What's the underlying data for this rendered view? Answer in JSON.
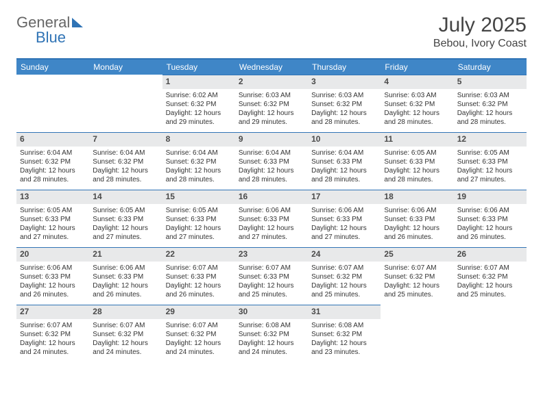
{
  "logo": {
    "word1": "General",
    "word2": "Blue"
  },
  "header": {
    "month_title": "July 2025",
    "location": "Bebou, Ivory Coast"
  },
  "colors": {
    "accent": "#2f73b5",
    "header_bg": "#3f86c7",
    "daynum_bg": "#e8e9ea",
    "text": "#333333"
  },
  "weekdays": [
    "Sunday",
    "Monday",
    "Tuesday",
    "Wednesday",
    "Thursday",
    "Friday",
    "Saturday"
  ],
  "weeks": [
    [
      null,
      null,
      {
        "n": "1",
        "rise": "6:02 AM",
        "set": "6:32 PM",
        "dl": "12 hours and 29 minutes."
      },
      {
        "n": "2",
        "rise": "6:03 AM",
        "set": "6:32 PM",
        "dl": "12 hours and 29 minutes."
      },
      {
        "n": "3",
        "rise": "6:03 AM",
        "set": "6:32 PM",
        "dl": "12 hours and 28 minutes."
      },
      {
        "n": "4",
        "rise": "6:03 AM",
        "set": "6:32 PM",
        "dl": "12 hours and 28 minutes."
      },
      {
        "n": "5",
        "rise": "6:03 AM",
        "set": "6:32 PM",
        "dl": "12 hours and 28 minutes."
      }
    ],
    [
      {
        "n": "6",
        "rise": "6:04 AM",
        "set": "6:32 PM",
        "dl": "12 hours and 28 minutes."
      },
      {
        "n": "7",
        "rise": "6:04 AM",
        "set": "6:32 PM",
        "dl": "12 hours and 28 minutes."
      },
      {
        "n": "8",
        "rise": "6:04 AM",
        "set": "6:32 PM",
        "dl": "12 hours and 28 minutes."
      },
      {
        "n": "9",
        "rise": "6:04 AM",
        "set": "6:33 PM",
        "dl": "12 hours and 28 minutes."
      },
      {
        "n": "10",
        "rise": "6:04 AM",
        "set": "6:33 PM",
        "dl": "12 hours and 28 minutes."
      },
      {
        "n": "11",
        "rise": "6:05 AM",
        "set": "6:33 PM",
        "dl": "12 hours and 28 minutes."
      },
      {
        "n": "12",
        "rise": "6:05 AM",
        "set": "6:33 PM",
        "dl": "12 hours and 27 minutes."
      }
    ],
    [
      {
        "n": "13",
        "rise": "6:05 AM",
        "set": "6:33 PM",
        "dl": "12 hours and 27 minutes."
      },
      {
        "n": "14",
        "rise": "6:05 AM",
        "set": "6:33 PM",
        "dl": "12 hours and 27 minutes."
      },
      {
        "n": "15",
        "rise": "6:05 AM",
        "set": "6:33 PM",
        "dl": "12 hours and 27 minutes."
      },
      {
        "n": "16",
        "rise": "6:06 AM",
        "set": "6:33 PM",
        "dl": "12 hours and 27 minutes."
      },
      {
        "n": "17",
        "rise": "6:06 AM",
        "set": "6:33 PM",
        "dl": "12 hours and 27 minutes."
      },
      {
        "n": "18",
        "rise": "6:06 AM",
        "set": "6:33 PM",
        "dl": "12 hours and 26 minutes."
      },
      {
        "n": "19",
        "rise": "6:06 AM",
        "set": "6:33 PM",
        "dl": "12 hours and 26 minutes."
      }
    ],
    [
      {
        "n": "20",
        "rise": "6:06 AM",
        "set": "6:33 PM",
        "dl": "12 hours and 26 minutes."
      },
      {
        "n": "21",
        "rise": "6:06 AM",
        "set": "6:33 PM",
        "dl": "12 hours and 26 minutes."
      },
      {
        "n": "22",
        "rise": "6:07 AM",
        "set": "6:33 PM",
        "dl": "12 hours and 26 minutes."
      },
      {
        "n": "23",
        "rise": "6:07 AM",
        "set": "6:33 PM",
        "dl": "12 hours and 25 minutes."
      },
      {
        "n": "24",
        "rise": "6:07 AM",
        "set": "6:32 PM",
        "dl": "12 hours and 25 minutes."
      },
      {
        "n": "25",
        "rise": "6:07 AM",
        "set": "6:32 PM",
        "dl": "12 hours and 25 minutes."
      },
      {
        "n": "26",
        "rise": "6:07 AM",
        "set": "6:32 PM",
        "dl": "12 hours and 25 minutes."
      }
    ],
    [
      {
        "n": "27",
        "rise": "6:07 AM",
        "set": "6:32 PM",
        "dl": "12 hours and 24 minutes."
      },
      {
        "n": "28",
        "rise": "6:07 AM",
        "set": "6:32 PM",
        "dl": "12 hours and 24 minutes."
      },
      {
        "n": "29",
        "rise": "6:07 AM",
        "set": "6:32 PM",
        "dl": "12 hours and 24 minutes."
      },
      {
        "n": "30",
        "rise": "6:08 AM",
        "set": "6:32 PM",
        "dl": "12 hours and 24 minutes."
      },
      {
        "n": "31",
        "rise": "6:08 AM",
        "set": "6:32 PM",
        "dl": "12 hours and 23 minutes."
      },
      null,
      null
    ]
  ],
  "labels": {
    "sunrise": "Sunrise:",
    "sunset": "Sunset:",
    "daylight": "Daylight:"
  }
}
